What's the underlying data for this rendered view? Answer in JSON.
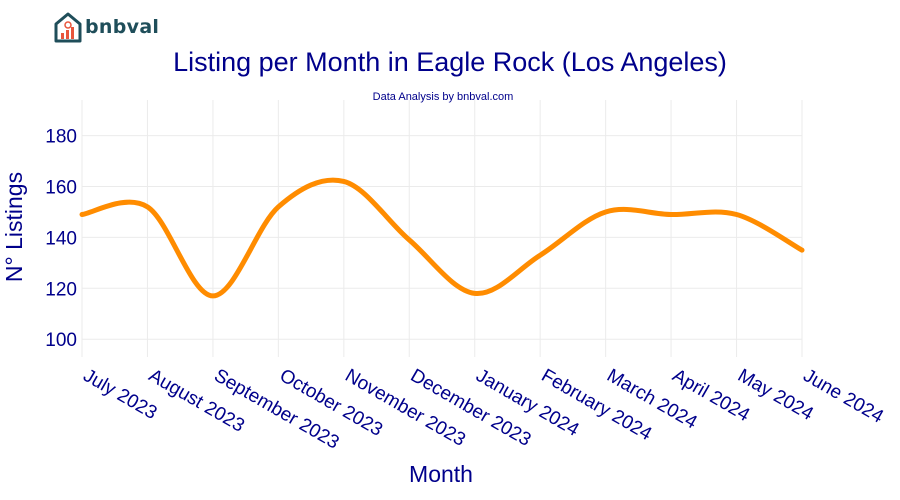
{
  "brand": {
    "name": "bnbval"
  },
  "chart_data": {
    "type": "line",
    "title": "Listing per Month in Eagle Rock (Los Angeles)",
    "subtitle": "Data Analysis by bnbval.com",
    "xlabel": "Month",
    "ylabel": "N° Listings",
    "categories": [
      "July 2023",
      "August 2023",
      "September 2023",
      "October 2023",
      "November 2023",
      "December 2023",
      "January 2024",
      "February 2024",
      "March 2024",
      "April 2024",
      "May 2024",
      "June 2024"
    ],
    "series": [
      {
        "values": [
          149,
          152,
          117,
          152,
          162,
          139,
          118,
          133,
          150,
          149,
          149,
          135
        ]
      }
    ],
    "yticks": [
      100,
      120,
      140,
      160,
      180
    ],
    "ylim": [
      93,
      194
    ],
    "grid": true,
    "line_color": "#ff8c00",
    "text_color": "#00008b",
    "grid_color": "#ebebeb"
  }
}
